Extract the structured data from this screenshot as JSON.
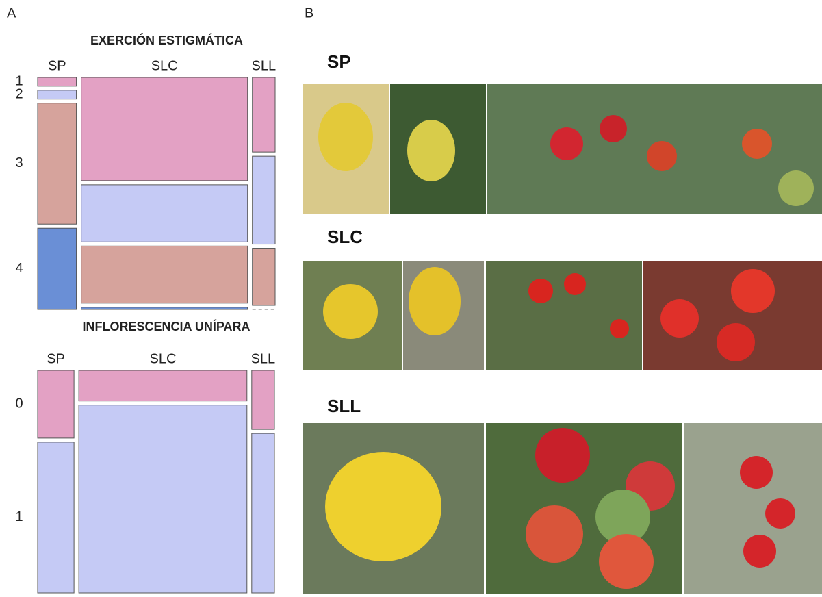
{
  "panel_a": {
    "label": "A",
    "mosaics": [
      {
        "title": "EXERCIÓN ESTIGMÁTICA",
        "columns": [
          "SP",
          "SLC",
          "SLL"
        ],
        "widths": [
          17,
          73,
          10
        ],
        "rows": [
          "1",
          "2",
          "3",
          "4"
        ],
        "colors": [
          "#e3a1c4",
          "#c5caf5",
          "#d6a39c",
          "#6a8fd6"
        ],
        "values": [
          [
            4,
            4,
            55,
            37
          ],
          [
            47,
            26,
            26,
            1
          ],
          [
            34,
            40,
            26,
            0
          ]
        ]
      },
      {
        "title": "INFLORESCENCIA UNÍPARA",
        "columns": [
          "SP",
          "SLC",
          "SLL"
        ],
        "widths": [
          16,
          74,
          10
        ],
        "rows": [
          "0",
          "1"
        ],
        "colors": [
          "#e3a1c4",
          "#c5caf5"
        ],
        "values": [
          [
            31,
            69
          ],
          [
            14,
            86
          ],
          [
            27,
            73
          ]
        ]
      }
    ]
  },
  "panel_b": {
    "label": "B",
    "groups": [
      "SP",
      "SLC",
      "SLL"
    ]
  }
}
